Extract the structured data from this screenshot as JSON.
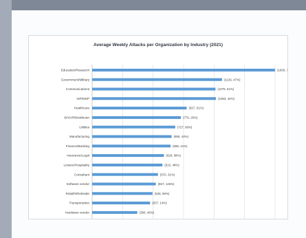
{
  "chart_data": {
    "type": "bar",
    "orientation": "horizontal",
    "title": "Average Weekly Attacks per Organization by Industry (2021)",
    "categories": [
      "Education/Research",
      "Government/Military",
      "Communications",
      "ISP/MSP",
      "Healthcare",
      "SI/VAR/Distributor",
      "Utilities",
      "Manufacturing",
      "Finance/Banking",
      "Insurance/Legal",
      "Leisure/Hospitality",
      "Consultant",
      "Software vendor",
      "Retail/Wholesale",
      "Transportation",
      "Hardware vendor"
    ],
    "values": [
      1605,
      1136,
      1079,
      1083,
      827,
      776,
      727,
      695,
      686,
      628,
      615,
      576,
      557,
      528,
      507,
      395
    ],
    "data_labels": [
      "1605, 75%",
      "1136, 47%",
      "1079, 51%",
      "1083, 44%",
      "827, 51%",
      "776, 26%",
      "727, 68%",
      "695, 44%",
      "686, 41%",
      "628, 68%",
      "615, 48%",
      "576, 31%",
      "557, 146%",
      "528, 59%",
      "507, 14%",
      "395, 46%"
    ],
    "xlim": [
      0,
      1600
    ],
    "grid": true,
    "bar_color": "#5b9bd5",
    "gridline_color": "#d9d9d9"
  }
}
